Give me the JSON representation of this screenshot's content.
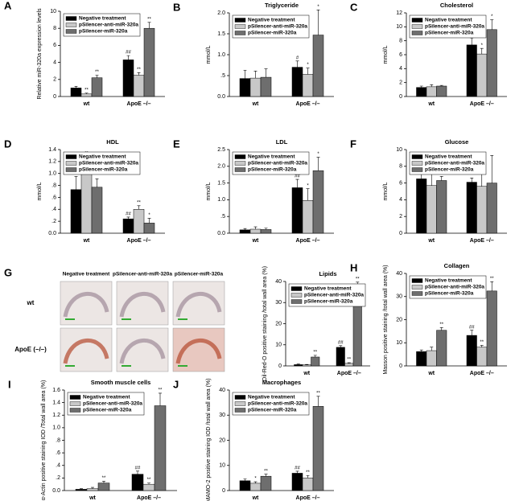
{
  "chart_data": [
    {
      "type": "bar",
      "letter": "A",
      "y_label": "Relative miR-320a expression levels",
      "categories": [
        "wt",
        "ApoE –/–"
      ],
      "ylim": [
        0,
        10
      ],
      "yticks": [
        0,
        2,
        4,
        6,
        8,
        10
      ],
      "series": [
        {
          "name": "Negative treatment",
          "color": "#000000",
          "values": [
            1.0,
            4.3
          ],
          "errors": [
            0.2,
            0.5
          ],
          "annotations": [
            null,
            "##"
          ]
        },
        {
          "name": "pSilencer-anti-miR-320a",
          "color": "#c8c8c8",
          "values": [
            0.3,
            2.5
          ],
          "errors": [
            0.1,
            0.3
          ],
          "annotations": [
            "**",
            "**"
          ]
        },
        {
          "name": "pSilencer-miR-320a",
          "color": "#6e6e6e",
          "values": [
            2.2,
            8.0
          ],
          "errors": [
            0.3,
            0.7
          ],
          "annotations": [
            "**",
            "**"
          ]
        }
      ]
    },
    {
      "type": "bar",
      "letter": "B",
      "title": "Triglyceride",
      "y_label": "mmol/L",
      "categories": [
        "wt",
        "ApoE –/–"
      ],
      "ylim": [
        0,
        2.0
      ],
      "yticks": [
        {
          "value": 0,
          "label": "0.0"
        },
        {
          "value": 0.5,
          "label": ".5"
        },
        {
          "value": 1.0,
          "label": "1.0"
        },
        {
          "value": 1.5,
          "label": "1.5"
        },
        {
          "value": 2.0,
          "label": "2.0"
        }
      ],
      "series": [
        {
          "name": "Negative treatment",
          "color": "#000000",
          "values": [
            0.43,
            0.7
          ],
          "errors": [
            0.2,
            0.15
          ],
          "annotations": [
            null,
            "#"
          ]
        },
        {
          "name": "pSilencer-anti-miR-320a",
          "color": "#c8c8c8",
          "values": [
            0.44,
            0.53
          ],
          "errors": [
            0.17,
            0.15
          ],
          "annotations": [
            null,
            "*"
          ]
        },
        {
          "name": "pSilencer-miR-320a",
          "color": "#6e6e6e",
          "values": [
            0.46,
            1.47
          ],
          "errors": [
            0.2,
            0.6
          ],
          "annotations": [
            null,
            "*"
          ]
        }
      ]
    },
    {
      "type": "bar",
      "letter": "C",
      "title": "Cholesterol",
      "y_label": "mmol/L",
      "categories": [
        "wt",
        "ApoE –/–"
      ],
      "ylim": [
        0,
        12
      ],
      "yticks": [
        0,
        2,
        4,
        6,
        8,
        10,
        12
      ],
      "series": [
        {
          "name": "Negative treatment",
          "color": "#000000",
          "values": [
            1.3,
            7.4
          ],
          "errors": [
            0.2,
            1.0
          ],
          "annotations": [
            null,
            "##"
          ]
        },
        {
          "name": "pSilencer-anti-miR-320a",
          "color": "#c8c8c8",
          "values": [
            1.4,
            6.1
          ],
          "errors": [
            0.3,
            0.8
          ],
          "annotations": [
            null,
            "*"
          ]
        },
        {
          "name": "pSilencer-miR-320a",
          "color": "#6e6e6e",
          "values": [
            1.5,
            9.6
          ],
          "errors": [
            0.1,
            1.4
          ],
          "annotations": [
            null,
            "*"
          ]
        }
      ]
    },
    {
      "type": "bar",
      "letter": "D",
      "title": "HDL",
      "y_label": "mmol/L",
      "categories": [
        "wt",
        "ApoE –/–"
      ],
      "ylim": [
        0,
        1.4
      ],
      "yticks": [
        {
          "value": 0,
          "label": "0.0"
        },
        {
          "value": 0.2,
          "label": ".2"
        },
        {
          "value": 0.4,
          "label": ".4"
        },
        {
          "value": 0.6,
          "label": ".6"
        },
        {
          "value": 0.8,
          "label": ".8"
        },
        {
          "value": 1.0,
          "label": "1.0"
        },
        {
          "value": 1.2,
          "label": "1.2"
        },
        {
          "value": 1.4,
          "label": "1.4"
        }
      ],
      "series": [
        {
          "name": "Negative treatment",
          "color": "#000000",
          "values": [
            0.73,
            0.24
          ],
          "errors": [
            0.22,
            0.03
          ],
          "annotations": [
            null,
            "##"
          ]
        },
        {
          "name": "pSilencer-anti-miR-320a",
          "color": "#c8c8c8",
          "values": [
            1.08,
            0.4
          ],
          "errors": [
            0.2,
            0.06
          ],
          "annotations": [
            "**",
            "**"
          ]
        },
        {
          "name": "pSilencer-miR-320a",
          "color": "#6e6e6e",
          "values": [
            0.77,
            0.17
          ],
          "errors": [
            0.14,
            0.08
          ],
          "annotations": [
            null,
            "*"
          ]
        }
      ]
    },
    {
      "type": "bar",
      "letter": "E",
      "title": "LDL",
      "y_label": "mmol/L",
      "categories": [
        "wt",
        "ApoE –/–"
      ],
      "ylim": [
        0,
        2.5
      ],
      "yticks": [
        {
          "value": 0,
          "label": "0.0"
        },
        {
          "value": 0.5,
          "label": ".5"
        },
        {
          "value": 1.0,
          "label": "1.0"
        },
        {
          "value": 1.5,
          "label": "1.5"
        },
        {
          "value": 2.0,
          "label": "2.0"
        },
        {
          "value": 2.5,
          "label": "2.5"
        }
      ],
      "series": [
        {
          "name": "Negative treatment",
          "color": "#000000",
          "values": [
            0.1,
            1.36
          ],
          "errors": [
            0.04,
            0.25
          ],
          "annotations": [
            null,
            "##"
          ]
        },
        {
          "name": "pSilencer-anti-miR-320a",
          "color": "#c8c8c8",
          "values": [
            0.12,
            0.98
          ],
          "errors": [
            0.07,
            0.35
          ],
          "annotations": [
            null,
            "*"
          ]
        },
        {
          "name": "pSilencer-miR-320a",
          "color": "#6e6e6e",
          "values": [
            0.11,
            1.87
          ],
          "errors": [
            0.04,
            0.4
          ],
          "annotations": [
            null,
            "*"
          ]
        }
      ]
    },
    {
      "type": "bar",
      "letter": "F",
      "title": "Glucose",
      "y_label": "mmol/L",
      "categories": [
        "wt",
        "ApoE –/–"
      ],
      "ylim": [
        0,
        10
      ],
      "yticks": [
        0,
        2,
        4,
        6,
        8,
        10
      ],
      "series": [
        {
          "name": "Negative treatment",
          "color": "#000000",
          "values": [
            6.5,
            6.1
          ],
          "errors": [
            1.5,
            0.5
          ],
          "annotations": [
            null,
            null
          ]
        },
        {
          "name": "pSilencer-anti-miR-320a",
          "color": "#c8c8c8",
          "values": [
            5.7,
            5.6
          ],
          "errors": [
            2.3,
            1.9
          ],
          "annotations": [
            null,
            null
          ]
        },
        {
          "name": "pSilencer-miR-320a",
          "color": "#6e6e6e",
          "values": [
            6.3,
            6.0
          ],
          "errors": [
            0.5,
            3.3
          ],
          "annotations": [
            null,
            null
          ]
        }
      ]
    },
    {
      "type": "bar",
      "title": "Lipids",
      "y_label": "Oil-Red-O positive staining /total wall area (%)",
      "categories": [
        "wt",
        "ApoE –/–"
      ],
      "ylim": [
        0,
        40
      ],
      "yticks": [
        0,
        10,
        20,
        30,
        40
      ],
      "series": [
        {
          "name": "Negative treatment",
          "color": "#000000",
          "values": [
            0.6,
            8.8
          ],
          "errors": [
            0.3,
            0.8
          ],
          "annotations": [
            null,
            "##"
          ]
        },
        {
          "name": "pSilencer-anti-miR-320a",
          "color": "#c8c8c8",
          "values": [
            0.5,
            1.2
          ],
          "errors": [
            0.2,
            0.3
          ],
          "annotations": [
            null,
            "**"
          ]
        },
        {
          "name": "pSilencer-miR-320a",
          "color": "#6e6e6e",
          "values": [
            4.2,
            34.7
          ],
          "errors": [
            0.8,
            5
          ],
          "annotations": [
            "**",
            "**"
          ]
        }
      ]
    },
    {
      "type": "bar",
      "letter": "H",
      "title": "Collagen",
      "y_label": "Masson positive staining /total wall area (%)",
      "categories": [
        "wt",
        "ApoE –/–"
      ],
      "ylim": [
        0,
        40
      ],
      "yticks": [
        0,
        10,
        20,
        30,
        40
      ],
      "series": [
        {
          "name": "Negative treatment",
          "color": "#000000",
          "values": [
            6.2,
            13.2
          ],
          "errors": [
            0.7,
            2.2
          ],
          "annotations": [
            null,
            "##"
          ]
        },
        {
          "name": "pSilencer-anti-miR-320a",
          "color": "#c8c8c8",
          "values": [
            6.6,
            8.1
          ],
          "errors": [
            1.5,
            0.8
          ],
          "annotations": [
            null,
            "**"
          ]
        },
        {
          "name": "pSilencer-miR-320a",
          "color": "#6e6e6e",
          "values": [
            15.4,
            32.4
          ],
          "errors": [
            1.2,
            4
          ],
          "annotations": [
            "**",
            "**"
          ]
        }
      ]
    },
    {
      "type": "bar",
      "letter": "I",
      "title": "Smooth muscle cells",
      "y_label": "α-Actin positive staining IOD /Total wall area (%)",
      "categories": [
        "wt",
        "ApoE –/–"
      ],
      "ylim": [
        0,
        1.6
      ],
      "yticks": [
        {
          "value": 0,
          "label": "0.0"
        },
        {
          "value": 0.2,
          "label": ".2"
        },
        {
          "value": 0.4,
          "label": ".4"
        },
        {
          "value": 0.6,
          "label": ".6"
        },
        {
          "value": 0.8,
          "label": ".8"
        },
        {
          "value": 1.0,
          "label": "1.0"
        },
        {
          "value": 1.2,
          "label": "1.2"
        },
        {
          "value": 1.4,
          "label": "1.4"
        },
        {
          "value": 1.6,
          "label": "1.6"
        }
      ],
      "series": [
        {
          "name": "Negative treatment",
          "color": "#000000",
          "values": [
            0.02,
            0.26
          ],
          "errors": [
            0.01,
            0.05
          ],
          "annotations": [
            null,
            "##"
          ]
        },
        {
          "name": "pSilencer-anti-miR-320a",
          "color": "#c8c8c8",
          "values": [
            0.03,
            0.1
          ],
          "errors": [
            0.02,
            0.02
          ],
          "annotations": [
            null,
            "**"
          ]
        },
        {
          "name": "pSilencer-miR-320a",
          "color": "#6e6e6e",
          "values": [
            0.12,
            1.35
          ],
          "errors": [
            0.03,
            0.2
          ],
          "annotations": [
            "**",
            "**"
          ]
        }
      ]
    },
    {
      "type": "bar",
      "letter": "J",
      "title": "Macrophages",
      "y_label": "MAMO-2 positive staining IOD /total wall area (%)",
      "categories": [
        "wt",
        "ApoE –/–"
      ],
      "ylim": [
        0,
        40
      ],
      "yticks": [
        0,
        10,
        20,
        30,
        40
      ],
      "series": [
        {
          "name": "Negative treatment",
          "color": "#000000",
          "values": [
            3.9,
            6.9
          ],
          "errors": [
            0.7,
            0.8
          ],
          "annotations": [
            null,
            "##"
          ]
        },
        {
          "name": "pSilencer-anti-miR-320a",
          "color": "#c8c8c8",
          "values": [
            2.9,
            5.0
          ],
          "errors": [
            0.6,
            1.0
          ],
          "annotations": [
            "*",
            "**"
          ]
        },
        {
          "name": "pSilencer-miR-320a",
          "color": "#6e6e6e",
          "values": [
            5.7,
            33.5
          ],
          "errors": [
            0.8,
            4
          ],
          "annotations": [
            "**",
            "**"
          ]
        }
      ]
    }
  ],
  "micrographs": {
    "letter": "G",
    "columns": [
      "Negative treatment",
      "pSilencer-anti-miR-320a",
      "pSilencer-miR-320a"
    ],
    "rows": [
      "wt",
      "ApoE (–/–)"
    ]
  }
}
